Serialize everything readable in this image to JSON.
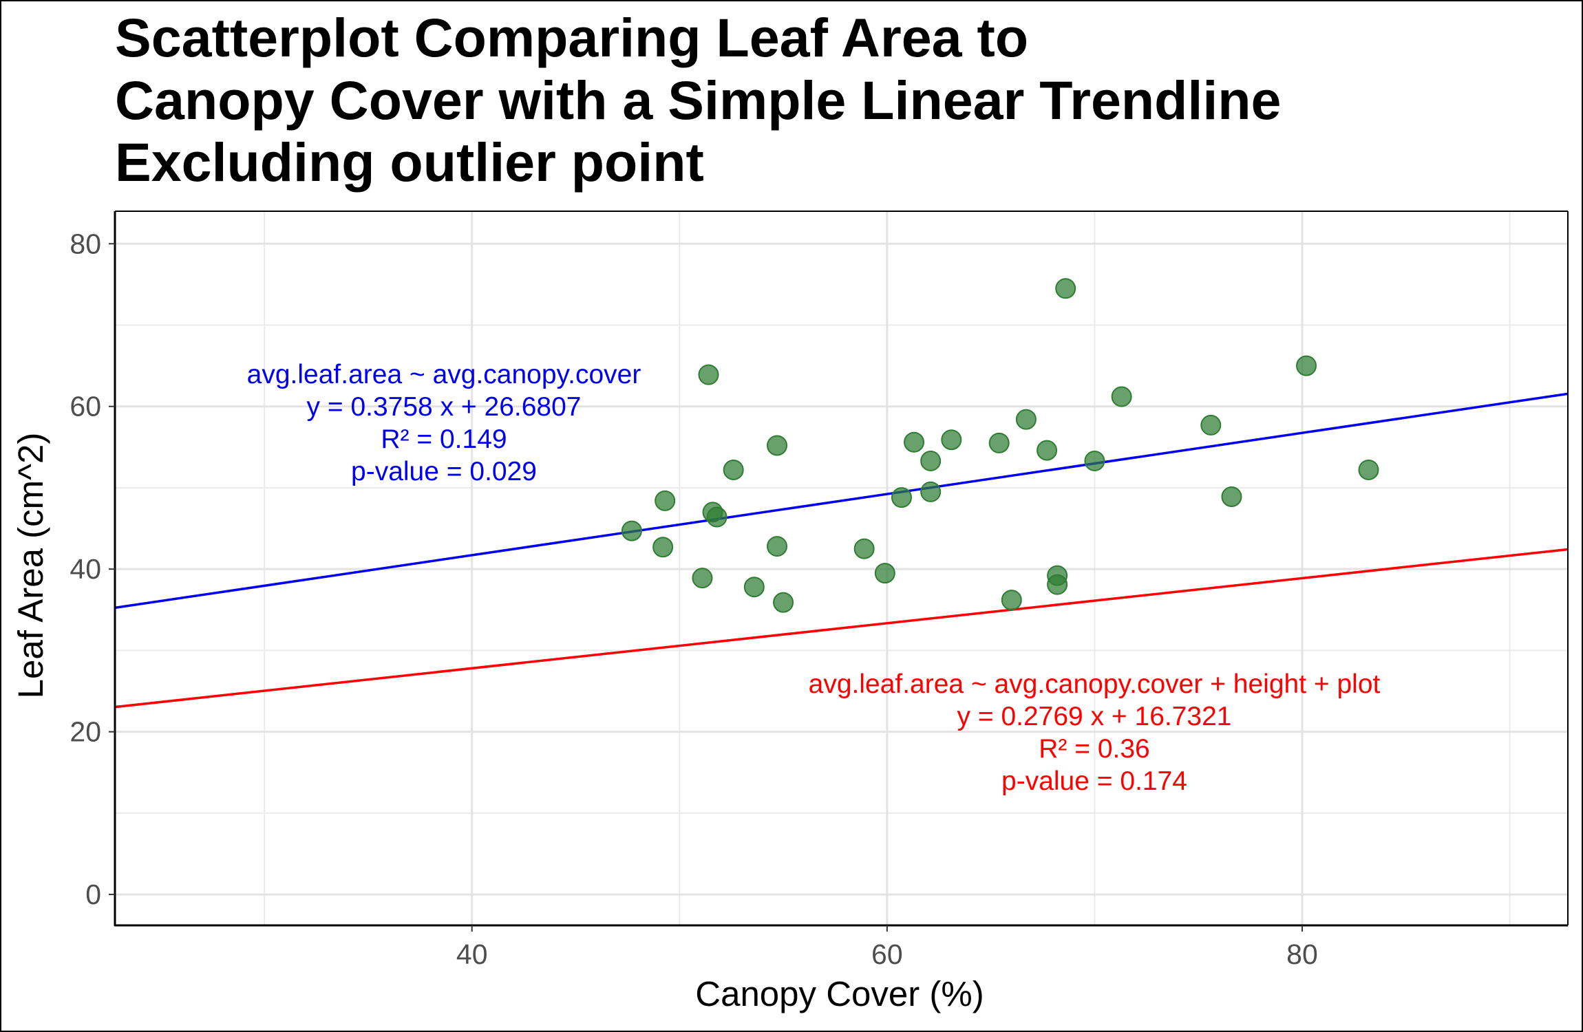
{
  "chart_data": {
    "type": "scatter",
    "title_lines": [
      "Scatterplot Comparing Leaf Area to",
      "Canopy Cover with a Simple Linear Trendline",
      "Excluding outlier point"
    ],
    "xlabel": "Canopy Cover (%)",
    "ylabel": "Leaf Area (cm^2)",
    "xlim": [
      22.8,
      92.8
    ],
    "ylim": [
      -3.8,
      84.0
    ],
    "x_ticks": [
      40,
      60,
      80
    ],
    "y_ticks": [
      0,
      20,
      40,
      60,
      80
    ],
    "x_minor": [
      30,
      50,
      70,
      90
    ],
    "y_minor": [
      10,
      30,
      50,
      70
    ],
    "grid": true,
    "point_color": "#2e7d32",
    "series": [
      {
        "points": [
          {
            "x": 47.7,
            "y": 44.7
          },
          {
            "x": 49.3,
            "y": 48.4
          },
          {
            "x": 49.2,
            "y": 42.7
          },
          {
            "x": 51.4,
            "y": 63.9
          },
          {
            "x": 51.6,
            "y": 47.0
          },
          {
            "x": 51.8,
            "y": 46.4
          },
          {
            "x": 51.1,
            "y": 38.9
          },
          {
            "x": 52.6,
            "y": 52.2
          },
          {
            "x": 53.6,
            "y": 37.8
          },
          {
            "x": 54.7,
            "y": 55.2
          },
          {
            "x": 54.7,
            "y": 42.8
          },
          {
            "x": 55.0,
            "y": 35.9
          },
          {
            "x": 58.9,
            "y": 42.5
          },
          {
            "x": 59.9,
            "y": 39.5
          },
          {
            "x": 60.7,
            "y": 48.8
          },
          {
            "x": 61.3,
            "y": 55.6
          },
          {
            "x": 62.1,
            "y": 53.3
          },
          {
            "x": 62.1,
            "y": 49.5
          },
          {
            "x": 63.1,
            "y": 55.9
          },
          {
            "x": 65.4,
            "y": 55.5
          },
          {
            "x": 66.0,
            "y": 36.2
          },
          {
            "x": 66.7,
            "y": 58.4
          },
          {
            "x": 67.7,
            "y": 54.6
          },
          {
            "x": 68.2,
            "y": 39.2
          },
          {
            "x": 68.2,
            "y": 38.1
          },
          {
            "x": 68.6,
            "y": 74.5
          },
          {
            "x": 70.0,
            "y": 53.3
          },
          {
            "x": 71.3,
            "y": 61.2
          },
          {
            "x": 75.6,
            "y": 57.7
          },
          {
            "x": 76.6,
            "y": 48.9
          },
          {
            "x": 80.2,
            "y": 65.0
          },
          {
            "x": 83.2,
            "y": 52.2
          }
        ]
      }
    ],
    "trendlines": [
      {
        "slope": 0.3758,
        "intercept": 26.6807,
        "color": "#0000ee"
      },
      {
        "slope": 0.2769,
        "intercept": 16.7321,
        "color": "#ff0000"
      }
    ],
    "annotations": [
      {
        "color": "#0000ee",
        "lines": [
          "avg.leaf.area ~ avg.canopy.cover",
          "y = 0.3758 x + 26.6807",
          "R² = 0.149",
          "p-value = 0.029"
        ]
      },
      {
        "color": "#ff0000",
        "lines": [
          "avg.leaf.area ~ avg.canopy.cover + height + plot",
          "y = 0.2769 x + 16.7321",
          "R² = 0.36",
          "p-value = 0.174"
        ]
      }
    ]
  }
}
